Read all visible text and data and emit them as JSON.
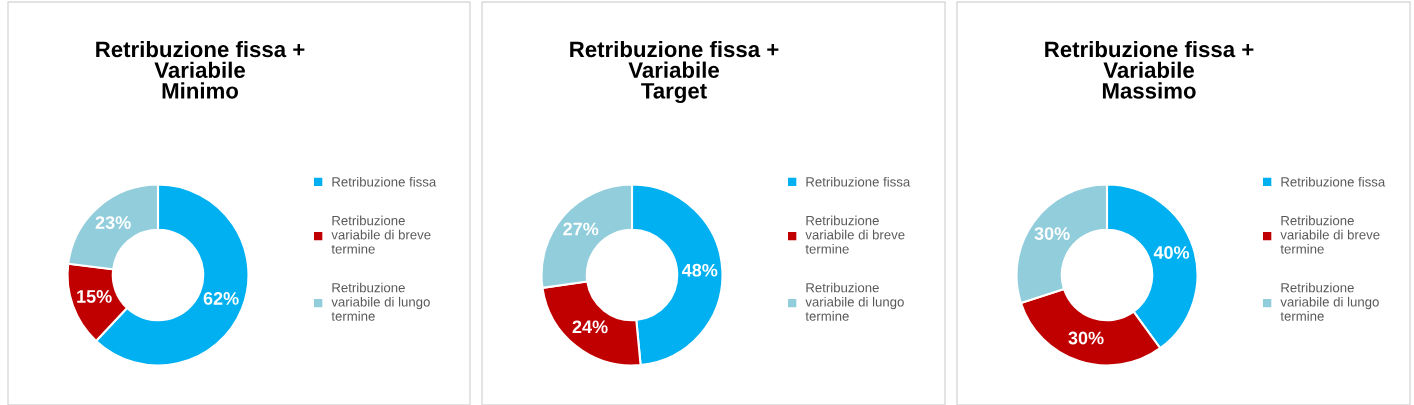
{
  "chart_data": [
    {
      "type": "donut",
      "title": "Retribuzione fissa +\nVariabile\nMinimo",
      "categories": [
        "Retribuzione fissa",
        "Retribuzione variabile di breve termine",
        "Retribuzione variabile di lungo termine"
      ],
      "values": [
        62,
        15,
        23
      ],
      "value_labels": [
        "62%",
        "15%",
        "23%"
      ],
      "colors": [
        "#00b0f0",
        "#c00000",
        "#92cddc"
      ],
      "legend": "right"
    },
    {
      "type": "donut",
      "title": "Retribuzione fissa +\nVariabile\nTarget",
      "categories": [
        "Retribuzione fissa",
        "Retribuzione variabile di breve termine",
        "Retribuzione variabile di lungo termine"
      ],
      "values": [
        48,
        24,
        27
      ],
      "value_labels": [
        "48%",
        "24%",
        "27%"
      ],
      "colors": [
        "#00b0f0",
        "#c00000",
        "#92cddc"
      ],
      "legend": "right"
    },
    {
      "type": "donut",
      "title": "Retribuzione fissa +\nVariabile\nMassimo",
      "categories": [
        "Retribuzione fissa",
        "Retribuzione variabile di breve termine",
        "Retribuzione variabile di lungo termine"
      ],
      "values": [
        40,
        30,
        30
      ],
      "value_labels": [
        "40%",
        "30%",
        "30%"
      ],
      "colors": [
        "#00b0f0",
        "#c00000",
        "#92cddc"
      ],
      "legend": "right"
    }
  ]
}
